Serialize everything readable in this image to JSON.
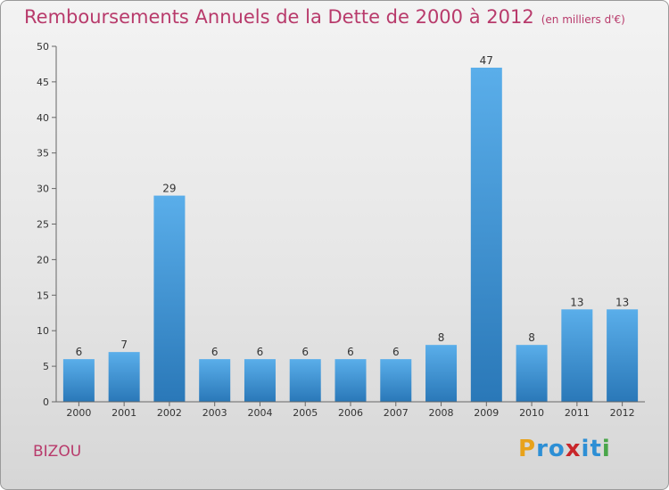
{
  "chart_data": {
    "type": "bar",
    "title": "Remboursements Annuels de la Dette de 2000 à 2012",
    "unit": "(en milliers d'€)",
    "categories": [
      "2000",
      "2001",
      "2002",
      "2003",
      "2004",
      "2005",
      "2006",
      "2007",
      "2008",
      "2009",
      "2010",
      "2011",
      "2012"
    ],
    "values": [
      6,
      7,
      29,
      6,
      6,
      6,
      6,
      6,
      8,
      47,
      8,
      13,
      13
    ],
    "data_labels": [
      "6",
      "7",
      "29",
      "6",
      "6",
      "6",
      "6",
      "6",
      "8",
      "47",
      "8",
      "13",
      "13"
    ],
    "ylim": [
      0,
      50
    ],
    "yticks": [
      0,
      5,
      10,
      15,
      20,
      25,
      30,
      35,
      40,
      45,
      50
    ],
    "grid": false,
    "bar_color": "#3a8fd4"
  },
  "place": "BIZOU",
  "logo": {
    "letters": [
      "P",
      "r",
      "o",
      "x",
      "i",
      "t",
      "i"
    ],
    "colors": [
      "#e8a21a",
      "#2d8fd5",
      "#2d8fd5",
      "#c8262a",
      "#2d8fd5",
      "#2d8fd5",
      "#4aa64a"
    ]
  }
}
